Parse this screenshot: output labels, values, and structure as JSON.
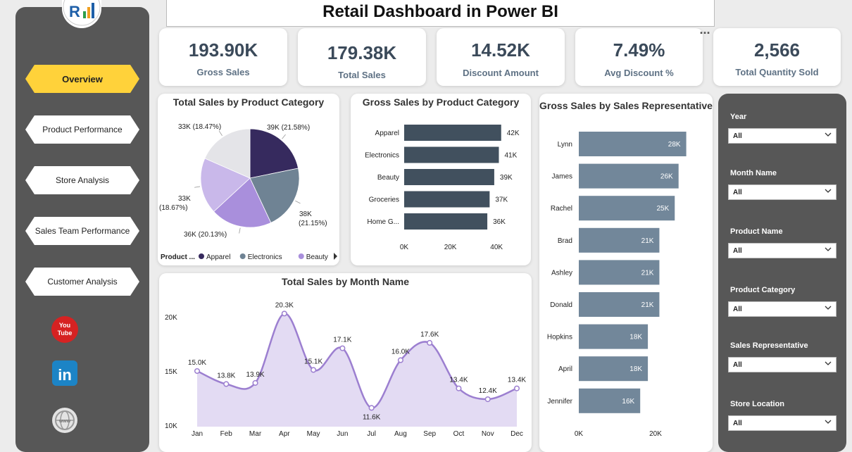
{
  "title": "Retail Dashboard in Power BI",
  "nav": [
    {
      "label": "Overview",
      "active": true
    },
    {
      "label": "Product Performance",
      "active": false
    },
    {
      "label": "Store Analysis",
      "active": false
    },
    {
      "label": "Sales Team Performance",
      "active": false
    },
    {
      "label": "Customer Analysis",
      "active": false
    }
  ],
  "social": [
    "youtube-icon",
    "linkedin-icon",
    "globe-icon"
  ],
  "more_options": "...",
  "kpis": [
    {
      "value": "193.90K",
      "label": "Gross Sales"
    },
    {
      "value": "179.38K",
      "label": "Total Sales"
    },
    {
      "value": "14.52K",
      "label": "Discount Amount"
    },
    {
      "value": "7.49%",
      "label": "Avg Discount %"
    },
    {
      "value": "2,566",
      "label": "Total Quantity Sold"
    }
  ],
  "filters": [
    {
      "label": "Year",
      "value": "All"
    },
    {
      "label": "Month Name",
      "value": "All"
    },
    {
      "label": "Product Name",
      "value": "All"
    },
    {
      "label": "Product Category",
      "value": "All"
    },
    {
      "label": "Sales Representative",
      "value": "All"
    },
    {
      "label": "Store Location",
      "value": "All"
    }
  ],
  "colors": {
    "accent": "#ffd23a",
    "panel_dark": "#575757",
    "kpi_text": "#3b4a5a",
    "bar_dark": "#41505e",
    "bar_light": "#72879a",
    "line": "#9c7fd0"
  },
  "chart_data": [
    {
      "type": "pie",
      "title": "Total Sales by Product Category",
      "legend_title": "Product ...",
      "legend_visible": [
        "Apparel",
        "Electronics",
        "Beauty"
      ],
      "slices": [
        {
          "name": "Apparel",
          "value": 39,
          "label": "39K (21.58%)",
          "color": "#362a5e"
        },
        {
          "name": "Electronics",
          "value": 38,
          "label": "38K (21.15%)",
          "color": "#6f8394"
        },
        {
          "name": "Beauty",
          "value": 36,
          "label": "36K (20.13%)",
          "color": "#a98fdc"
        },
        {
          "name": "",
          "value": 33,
          "label": "33K (18.67%)",
          "color": "#c9b8ea"
        },
        {
          "name": "",
          "value": 33,
          "label": "33K (18.47%)",
          "color": "#e4e4e8"
        }
      ]
    },
    {
      "type": "bar",
      "orientation": "horizontal",
      "title": "Gross Sales by Product Category",
      "categories": [
        "Apparel",
        "Electronics",
        "Beauty",
        "Groceries",
        "Home G..."
      ],
      "values": [
        42,
        41,
        39,
        37,
        36
      ],
      "value_labels": [
        "42K",
        "41K",
        "39K",
        "37K",
        "36K"
      ],
      "xticks": [
        "0K",
        "20K",
        "40K"
      ],
      "xlim": [
        0,
        50
      ]
    },
    {
      "type": "bar",
      "orientation": "horizontal",
      "title": "Gross Sales by Sales Representative",
      "categories": [
        "Lynn",
        "James",
        "Rachel",
        "Brad",
        "Ashley",
        "Donald",
        "Hopkins",
        "April",
        "Jennifer"
      ],
      "values": [
        28,
        26,
        25,
        21,
        21,
        21,
        18,
        18,
        16
      ],
      "value_labels": [
        "28K",
        "26K",
        "25K",
        "21K",
        "21K",
        "21K",
        "18K",
        "18K",
        "16K"
      ],
      "xticks": [
        "0K",
        "20K"
      ],
      "xlim": [
        0,
        33
      ]
    },
    {
      "type": "area",
      "title": "Total Sales by Month Name",
      "x": [
        "Jan",
        "Feb",
        "Mar",
        "Apr",
        "May",
        "Jun",
        "Jul",
        "Aug",
        "Sep",
        "Oct",
        "Nov",
        "Dec"
      ],
      "values": [
        15.0,
        13.8,
        13.9,
        20.3,
        15.1,
        17.1,
        11.6,
        16.0,
        17.6,
        13.4,
        12.4,
        13.4
      ],
      "value_labels": [
        "15.0K",
        "13.8K",
        "13.9K",
        "20.3K",
        "15.1K",
        "17.1K",
        "11.6K",
        "16.0K",
        "17.6K",
        "13.4K",
        "12.4K",
        "13.4K"
      ],
      "yticks": [
        "10K",
        "15K",
        "20K"
      ],
      "ylim": [
        10,
        20
      ]
    }
  ]
}
